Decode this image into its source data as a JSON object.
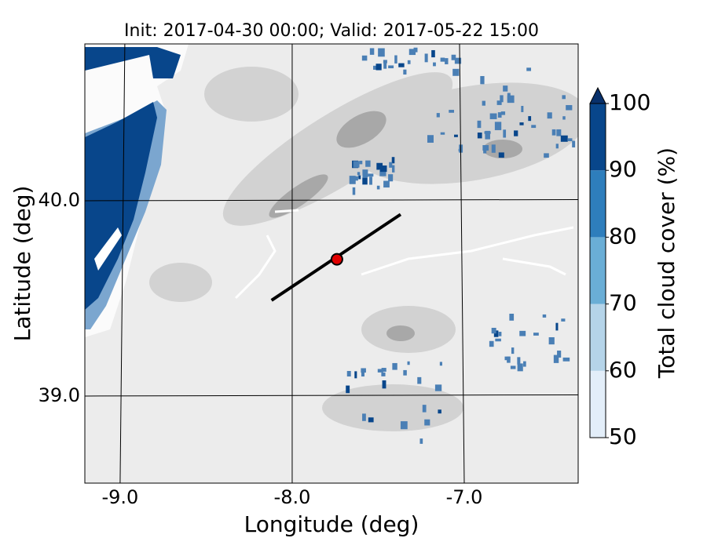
{
  "chart_data": {
    "type": "map",
    "title": "Init: 2017-04-30 00:00; Valid: 2017-05-22 15:00",
    "x_label": "Longitude (deg)",
    "y_label": "Latitude (deg)",
    "xlim": [
      -9.205,
      -6.338
    ],
    "ylim": [
      38.554,
      40.803
    ],
    "xticks": [
      {
        "value": -9,
        "label": "-9.0"
      },
      {
        "value": -8,
        "label": "-8.0"
      },
      {
        "value": -7,
        "label": "-7.0"
      }
    ],
    "yticks": [
      {
        "value": 39,
        "label": "39.0"
      },
      {
        "value": 40,
        "label": "40.0"
      }
    ],
    "grid": true,
    "transect": {
      "lon": [
        -8.12,
        -7.37
      ],
      "lat": [
        39.49,
        39.93
      ],
      "color": "#000000"
    },
    "point": {
      "lon": -7.74,
      "lat": 39.7,
      "color": "#e00000"
    },
    "colorbar": {
      "label": "Total cloud cover (%)",
      "lim": [
        50,
        100
      ],
      "ticks": [
        50,
        60,
        70,
        80,
        90,
        100
      ],
      "colors": [
        "#e3eef9",
        "#b5d4e9",
        "#6aaed6",
        "#2e7ebc",
        "#08468b"
      ],
      "extend": "max"
    }
  }
}
